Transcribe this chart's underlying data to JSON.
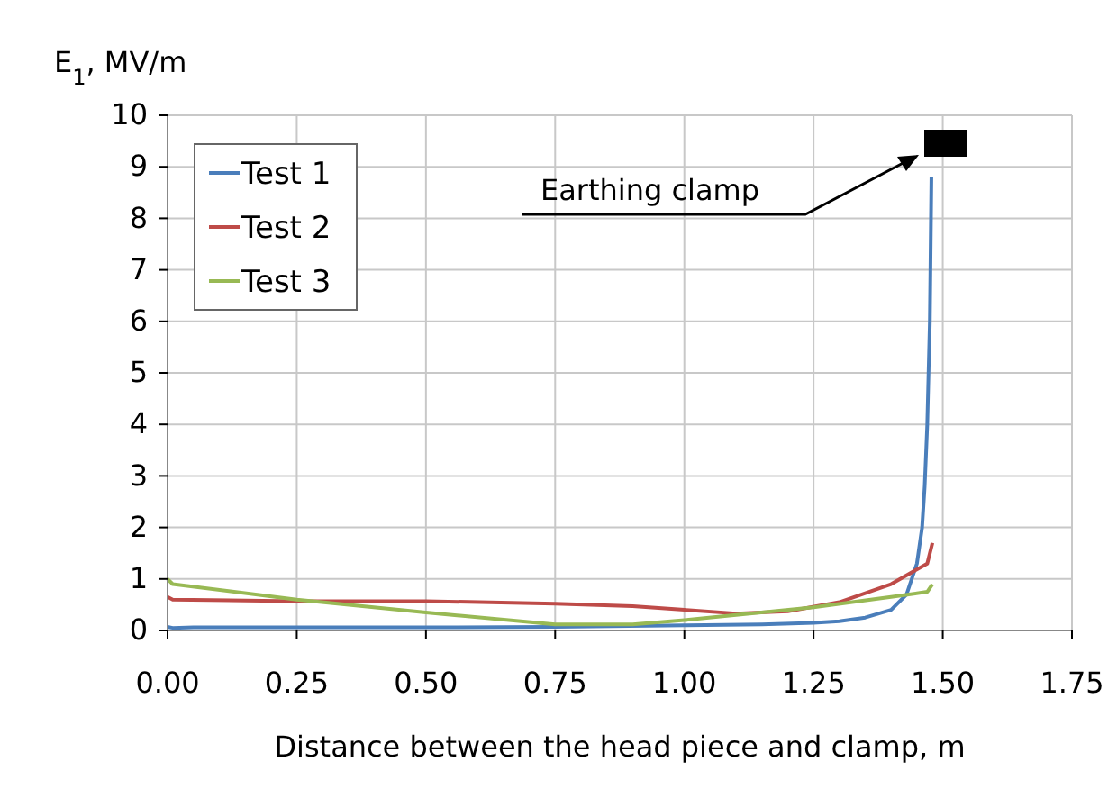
{
  "chart_data": {
    "type": "line",
    "xlabel": "Distance between the head piece and clamp, m",
    "ylabel": "E$_{1}$, MV/m",
    "xlim": [
      0,
      1.75
    ],
    "xticks": [
      {
        "value": 0,
        "label": "0.00"
      },
      0.25,
      {
        "value": 0.5,
        "label": "0.50"
      },
      0.75,
      {
        "value": 1,
        "label": "1.00"
      },
      1.25,
      {
        "value": 1.5,
        "label": "1.50"
      },
      1.75
    ],
    "ylim": [
      0,
      10
    ],
    "yticks": [
      0,
      1,
      2,
      3,
      4,
      5,
      6,
      7,
      8,
      9,
      10
    ],
    "grid": true,
    "legend": "top left",
    "marker": "none",
    "line_style": "solid",
    "annotations": [
      "Earthing clamp"
    ],
    "series": [
      {
        "name": "Test 1",
        "color": "#4a7ebb",
        "x": [
          0,
          0.01,
          0.05,
          0.25,
          0.5,
          0.75,
          1.0,
          1.15,
          1.25,
          1.3,
          1.35,
          1.4,
          1.43,
          1.45,
          1.46,
          1.465,
          1.47,
          1.475,
          1.478
        ],
        "values": [
          0.07,
          0.05,
          0.06,
          0.06,
          0.06,
          0.07,
          0.1,
          0.12,
          0.15,
          0.18,
          0.25,
          0.4,
          0.7,
          1.3,
          2,
          2.8,
          4,
          6,
          8.8
        ]
      },
      {
        "name": "Test 2",
        "color": "#be4b48",
        "x": [
          0,
          0.01,
          0.25,
          0.5,
          0.75,
          0.9,
          1.0,
          1.1,
          1.2,
          1.3,
          1.4,
          1.47,
          1.48
        ],
        "values": [
          0.65,
          0.6,
          0.57,
          0.57,
          0.52,
          0.47,
          0.4,
          0.33,
          0.37,
          0.55,
          0.9,
          1.3,
          1.7
        ]
      },
      {
        "name": "Test 3",
        "color": "#98b954",
        "x": [
          0,
          0.01,
          0.25,
          0.5,
          0.75,
          0.9,
          1.0,
          1.1,
          1.25,
          1.4,
          1.47,
          1.48
        ],
        "values": [
          1.0,
          0.9,
          0.6,
          0.35,
          0.12,
          0.12,
          0.2,
          0.3,
          0.45,
          0.65,
          0.75,
          0.9
        ]
      }
    ]
  }
}
